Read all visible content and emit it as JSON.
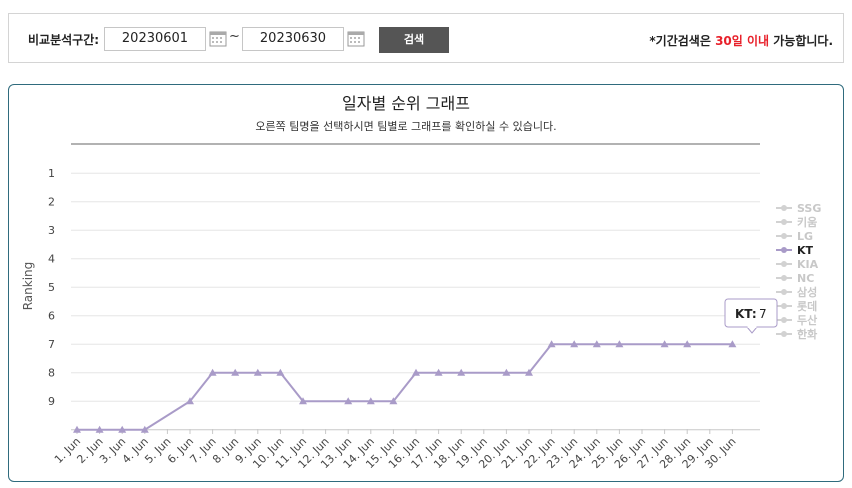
{
  "search": {
    "label": "비교분석구간:",
    "start_date": "20230601",
    "end_date": "20230630",
    "tilde": "~",
    "button_label": "검색",
    "note_prefix": "*기간검색은 ",
    "note_highlight": "30일 이내",
    "note_suffix": " 가능합니다.",
    "highlight_color": "#e8202a"
  },
  "chart_data": {
    "type": "line",
    "title": "일자별 순위 그래프",
    "subtitle": "오른쪽 팀명을 선택하시면 팀별로 그래프를 확인하실 수 있습니다.",
    "ylabel": "Ranking",
    "y_ticks": [
      "1",
      "2",
      "3",
      "4",
      "5",
      "6",
      "7",
      "8",
      "9"
    ],
    "ylim": [
      1,
      10
    ],
    "y_inverted": true,
    "grid": true,
    "legend_position": "right",
    "categories": [
      "1. Jun",
      "2. Jun",
      "3. Jun",
      "4. Jun",
      "5. Jun",
      "6. Jun",
      "7. Jun",
      "8. Jun",
      "9. Jun",
      "10. Jun",
      "11. Jun",
      "12. Jun",
      "13. Jun",
      "14. Jun",
      "15. Jun",
      "16. Jun",
      "17. Jun",
      "18. Jun",
      "19. Jun",
      "20. Jun",
      "21. Jun",
      "22. Jun",
      "23. Jun",
      "24. Jun",
      "25. Jun",
      "26. Jun",
      "27. Jun",
      "28. Jun",
      "29. Jun",
      "30. Jun"
    ],
    "legend": [
      {
        "name": "SSG",
        "active": false
      },
      {
        "name": "키움",
        "active": false
      },
      {
        "name": "LG",
        "active": false
      },
      {
        "name": "KT",
        "active": true
      },
      {
        "name": "KIA",
        "active": false
      },
      {
        "name": "NC",
        "active": false
      },
      {
        "name": "삼성",
        "active": false
      },
      {
        "name": "롯데",
        "active": false
      },
      {
        "name": "두산",
        "active": false
      },
      {
        "name": "한화",
        "active": false
      }
    ],
    "series": [
      {
        "name": "KT",
        "color": "#a99bc8",
        "values": [
          10,
          10,
          10,
          10,
          null,
          9,
          8,
          8,
          8,
          8,
          9,
          null,
          9,
          9,
          9,
          8,
          8,
          8,
          null,
          8,
          8,
          7,
          7,
          7,
          7,
          null,
          7,
          7,
          null,
          7
        ]
      }
    ],
    "tooltip": {
      "series": "KT",
      "label": "KT:",
      "value": "7"
    }
  }
}
